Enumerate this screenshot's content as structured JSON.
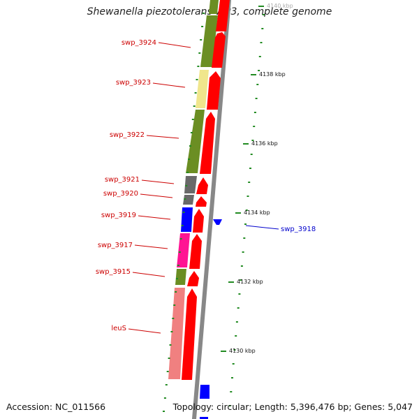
{
  "title": "Shewanella piezotolerans WP3, complete genome",
  "accession_text": "Accession: NC_011566",
  "topology_text": "Topology: circular; Length: 5,396,476 bp; Genes: 5,047",
  "colors": {
    "gene_label": "#cc0000",
    "highlight_label": "#0000cc",
    "tick": "#228b22",
    "cds": "#ff0000",
    "backbone": "#888888"
  },
  "ticks": [
    "4140 kbp",
    "4138 kbp",
    "4136 kbp",
    "4134 kbp",
    "4132 kbp",
    "4130 kbp"
  ],
  "genes": [
    {
      "name": "swp_3924",
      "class_color": "#6b8e23"
    },
    {
      "name": "swp_3923",
      "class_color": "#f0e68c"
    },
    {
      "name": "swp_3922",
      "class_color": "#6b8e23"
    },
    {
      "name": "swp_3921",
      "class_color": "#696969"
    },
    {
      "name": "swp_3920",
      "class_color": "#696969"
    },
    {
      "name": "swp_3919",
      "class_color": "#0000ff"
    },
    {
      "name": "swp_3917",
      "class_color": "#ff1493"
    },
    {
      "name": "swp_3915",
      "class_color": "#6b8e23"
    },
    {
      "name": "leuS",
      "class_color": "#f08080"
    }
  ],
  "highlight_gene": {
    "name": "swp_3918",
    "class_color": "#0000ff"
  }
}
